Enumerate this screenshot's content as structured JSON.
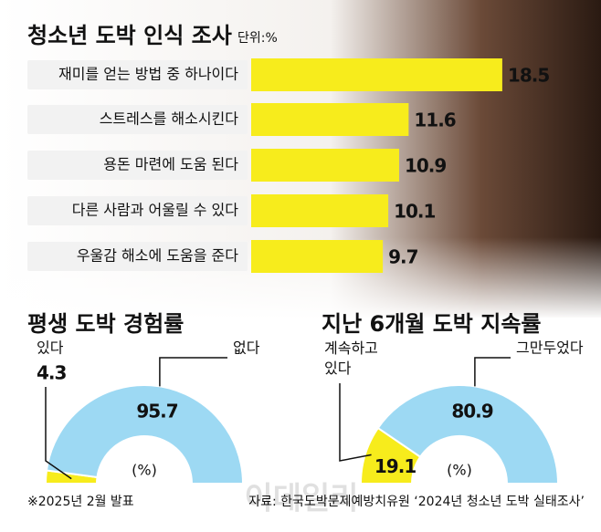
{
  "chart_data": [
    {
      "type": "bar",
      "title": "청소년 도박 인식 조사",
      "unit": "단위:%",
      "categories": [
        "재미를 얻는 방법 중 하나이다",
        "스트레스를 해소시킨다",
        "용돈 마련에 도움 된다",
        "다른 사람과 어울릴 수 있다",
        "우울감 해소에 도움을 준다"
      ],
      "values": [
        18.5,
        11.6,
        10.9,
        10.1,
        9.7
      ],
      "color": "#f7ec1c"
    },
    {
      "type": "semi-donut",
      "title": "평생 도박 경험률",
      "categories": [
        "있다",
        "없다"
      ],
      "values": [
        4.3,
        95.7
      ],
      "colors": [
        "#f7ec1c",
        "#9dd9f3"
      ],
      "center_label": "(%)"
    },
    {
      "type": "semi-donut",
      "title": "지난 6개월 도박 지속률",
      "categories": [
        "계속하고 있다",
        "그만두었다"
      ],
      "values": [
        19.1,
        80.9
      ],
      "colors": [
        "#f7ec1c",
        "#9dd9f3"
      ],
      "center_label": "(%)"
    }
  ],
  "footnote": "※2025년 2월 발표",
  "source": "자료: 한국도박문제예방치유원 ‘2024년 청소년 도박 실태조사’",
  "watermark": "이데일리"
}
